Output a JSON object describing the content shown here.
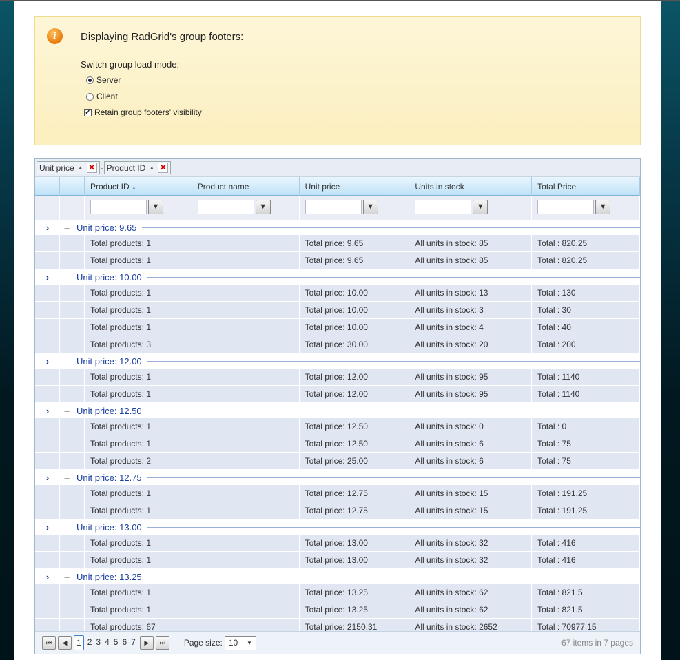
{
  "info": {
    "title": "Displaying RadGrid's group footers:",
    "subtitle": "Switch group load mode:",
    "options": [
      {
        "label": "Server",
        "checked": true
      },
      {
        "label": "Client",
        "checked": false
      }
    ],
    "retain_label": "Retain group footers' visibility",
    "retain_checked": true
  },
  "group_panel": [
    {
      "label": "Unit price"
    },
    {
      "label": "Product ID"
    }
  ],
  "group_sep": "-",
  "columns": [
    "",
    "",
    "Product ID",
    "Product name",
    "Unit price",
    "Units in stock",
    "Total Price"
  ],
  "sort_indicator": "▲",
  "groups": [
    {
      "label": "Unit price: 9.65",
      "footers": [
        [
          "Total products: 1",
          "Total price: 9.65",
          "All units in stock: 85",
          "Total : 820.25"
        ],
        [
          "Total products: 1",
          "Total price: 9.65",
          "All units in stock: 85",
          "Total : 820.25"
        ]
      ]
    },
    {
      "label": "Unit price: 10.00",
      "footers": [
        [
          "Total products: 1",
          "Total price: 10.00",
          "All units in stock: 13",
          "Total : 130"
        ],
        [
          "Total products: 1",
          "Total price: 10.00",
          "All units in stock: 3",
          "Total : 30"
        ],
        [
          "Total products: 1",
          "Total price: 10.00",
          "All units in stock: 4",
          "Total : 40"
        ],
        [
          "Total products: 3",
          "Total price: 30.00",
          "All units in stock: 20",
          "Total : 200"
        ]
      ]
    },
    {
      "label": "Unit price: 12.00",
      "footers": [
        [
          "Total products: 1",
          "Total price: 12.00",
          "All units in stock: 95",
          "Total : 1140"
        ],
        [
          "Total products: 1",
          "Total price: 12.00",
          "All units in stock: 95",
          "Total : 1140"
        ]
      ]
    },
    {
      "label": "Unit price: 12.50",
      "footers": [
        [
          "Total products: 1",
          "Total price: 12.50",
          "All units in stock: 0",
          "Total : 0"
        ],
        [
          "Total products: 1",
          "Total price: 12.50",
          "All units in stock: 6",
          "Total : 75"
        ],
        [
          "Total products: 2",
          "Total price: 25.00",
          "All units in stock: 6",
          "Total : 75"
        ]
      ]
    },
    {
      "label": "Unit price: 12.75",
      "footers": [
        [
          "Total products: 1",
          "Total price: 12.75",
          "All units in stock: 15",
          "Total : 191.25"
        ],
        [
          "Total products: 1",
          "Total price: 12.75",
          "All units in stock: 15",
          "Total : 191.25"
        ]
      ]
    },
    {
      "label": "Unit price: 13.00",
      "footers": [
        [
          "Total products: 1",
          "Total price: 13.00",
          "All units in stock: 32",
          "Total : 416"
        ],
        [
          "Total products: 1",
          "Total price: 13.00",
          "All units in stock: 32",
          "Total : 416"
        ]
      ]
    },
    {
      "label": "Unit price: 13.25",
      "footers": [
        [
          "Total products: 1",
          "Total price: 13.25",
          "All units in stock: 62",
          "Total : 821.5"
        ],
        [
          "Total products: 1",
          "Total price: 13.25",
          "All units in stock: 62",
          "Total : 821.5"
        ]
      ]
    }
  ],
  "grand_total": [
    "Total products: 67",
    "Total price: 2150.31",
    "All units in stock: 2652",
    "Total : 70977.15"
  ],
  "pager": {
    "pages": [
      "1",
      "2",
      "3",
      "4",
      "5",
      "6",
      "7"
    ],
    "current": "1",
    "page_size_label": "Page size:",
    "page_size": "10",
    "summary": "67 items in 7 pages"
  }
}
